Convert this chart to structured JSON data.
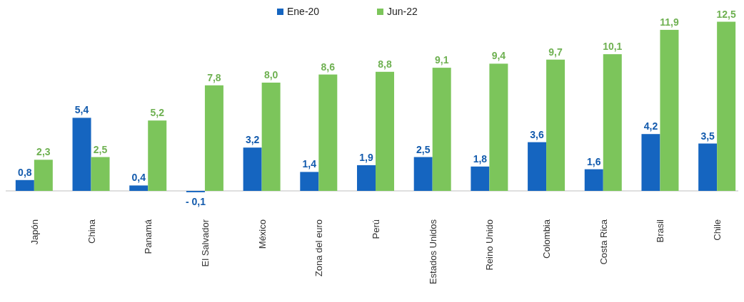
{
  "chart_data": {
    "type": "bar",
    "categories": [
      "Japón",
      "China",
      "Panamá",
      "El Salvador",
      "México",
      "Zona del euro",
      "Perú",
      "Estados Unidos",
      "Reino Unido",
      "Colombia",
      "Costa Rica",
      "Brasil",
      "Chile"
    ],
    "series": [
      {
        "name": "Ene-20",
        "color": "#1565c0",
        "values": [
          0.8,
          5.4,
          0.4,
          -0.1,
          3.2,
          1.4,
          1.9,
          2.5,
          1.8,
          3.6,
          1.6,
          4.2,
          3.5
        ],
        "value_labels": [
          "0,8",
          "5,4",
          "0,4",
          "- 0,1",
          "3,2",
          "1,4",
          "1,9",
          "2,5",
          "1,8",
          "3,6",
          "1,6",
          "4,2",
          "3,5"
        ]
      },
      {
        "name": "Jun-22",
        "color": "#7cc55b",
        "values": [
          2.3,
          2.5,
          5.2,
          7.8,
          8.0,
          8.6,
          8.8,
          9.1,
          9.4,
          9.7,
          10.1,
          11.9,
          12.5
        ],
        "value_labels": [
          "2,3",
          "2,5",
          "5,2",
          "7,8",
          "8,0",
          "8,6",
          "8,8",
          "9,1",
          "9,4",
          "9,7",
          "10,1",
          "11,9",
          "12,5"
        ]
      }
    ],
    "legend": "top"
  }
}
